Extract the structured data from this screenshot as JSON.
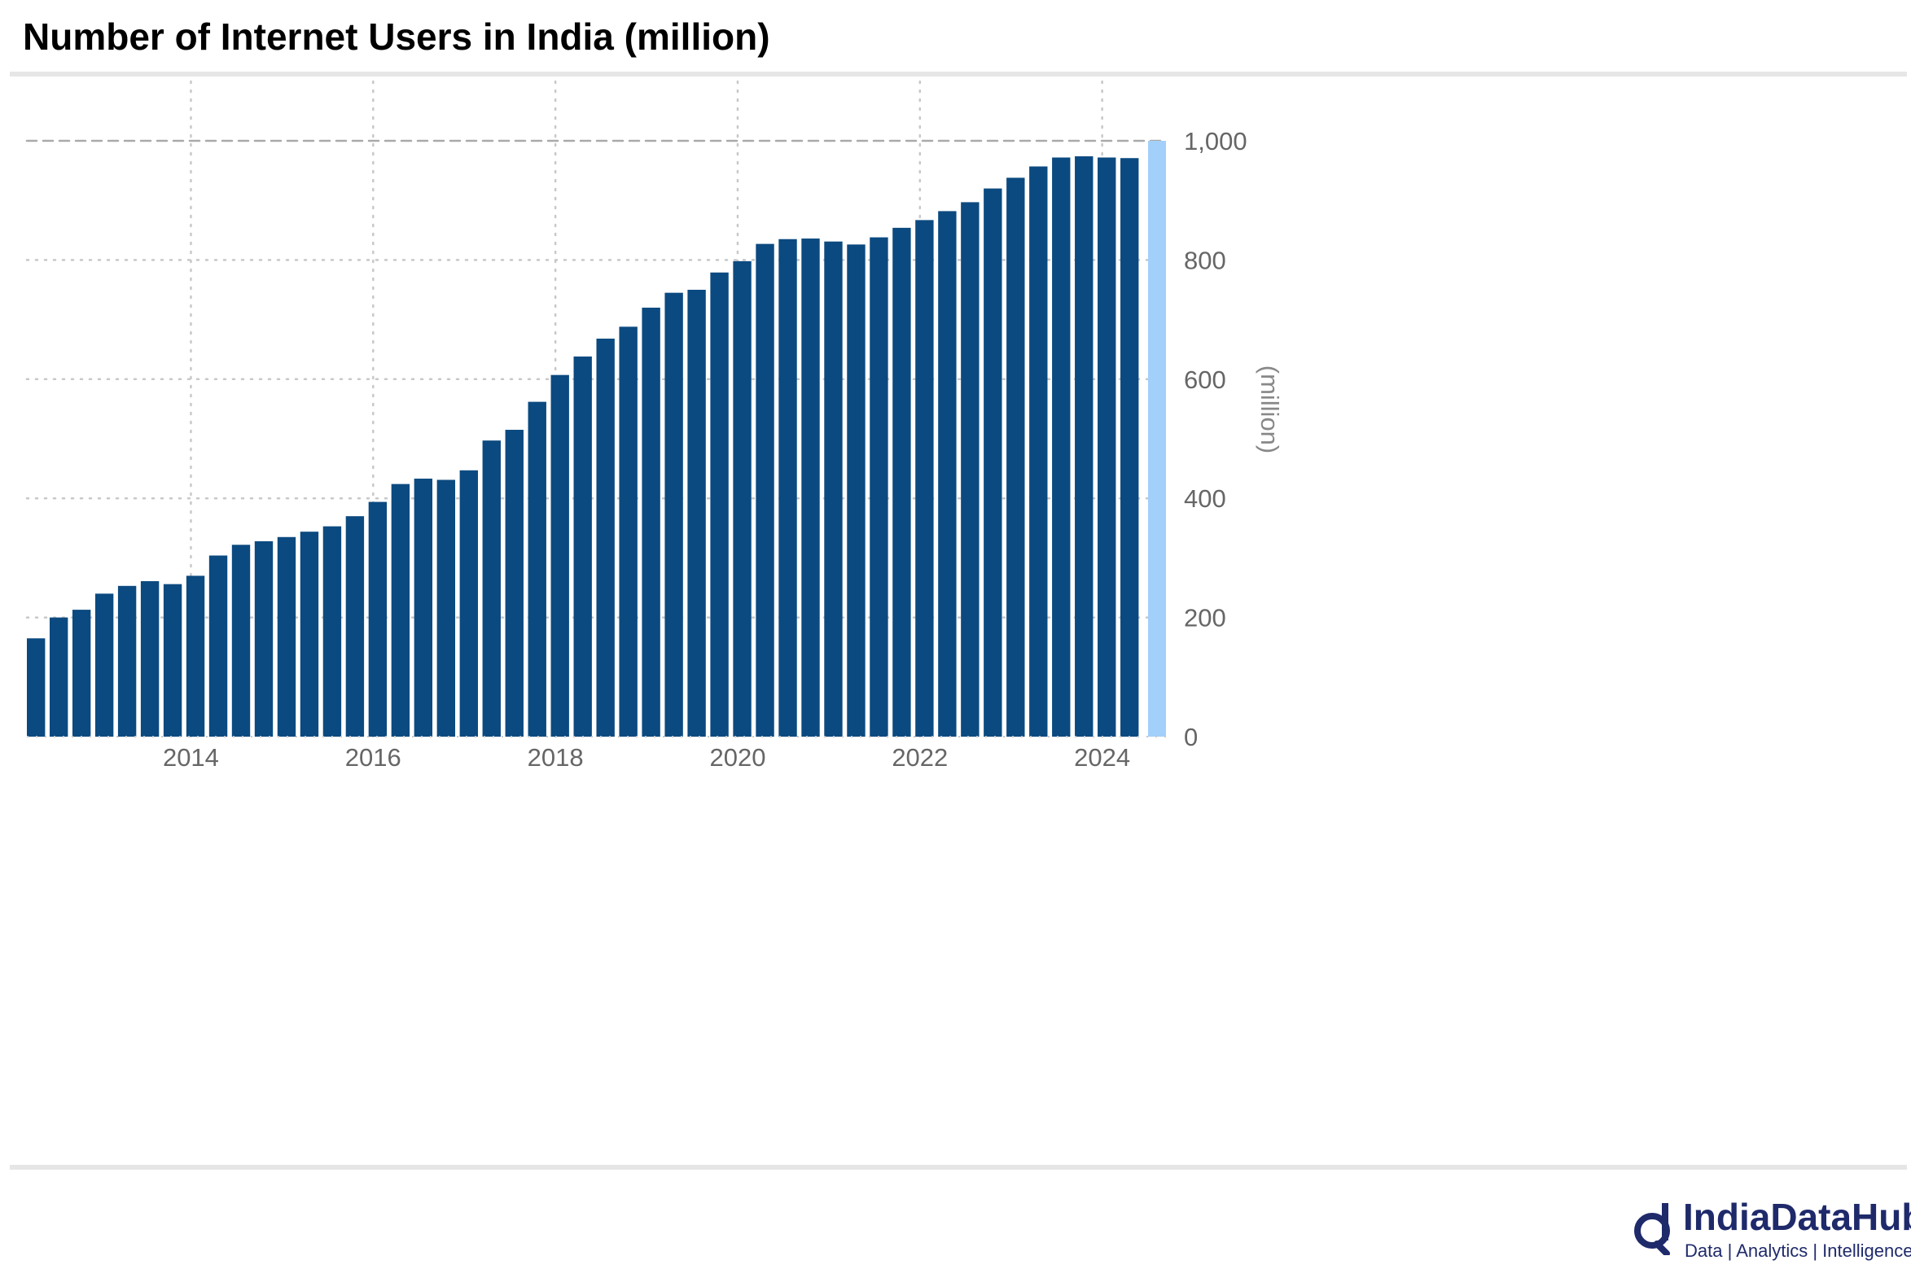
{
  "brand": {
    "name": "IndiaDataHub",
    "tagline": "Data | Analytics | Intelligence",
    "colors": {
      "bar": "#0b4a80",
      "highlight": "#a3d0fa",
      "text": "#1f2a6b"
    }
  },
  "chart_data": {
    "type": "bar",
    "title": "Number of Internet Users in India (million)",
    "xlabel": "",
    "ylabel": "(million)",
    "ylim": [
      0,
      1000
    ],
    "yticks": [
      "0",
      "200",
      "400",
      "600",
      "800",
      "1,000"
    ],
    "xticks": [
      "2014",
      "2016",
      "2018",
      "2020",
      "2022",
      "2024"
    ],
    "grid": true,
    "frequency": "quarterly",
    "start_period": "2013-Q1",
    "values": [
      165,
      200,
      213,
      240,
      253,
      261,
      256,
      270,
      304,
      322,
      328,
      335,
      344,
      353,
      370,
      394,
      424,
      433,
      431,
      447,
      497,
      515,
      562,
      607,
      638,
      668,
      688,
      720,
      745,
      750,
      779,
      798,
      827,
      835,
      836,
      831,
      826,
      838,
      854,
      867,
      882,
      897,
      920,
      938,
      957,
      972,
      974,
      972,
      971
    ],
    "highlight_band": {
      "y_from": 0,
      "y_to": 1000,
      "label": ""
    }
  }
}
